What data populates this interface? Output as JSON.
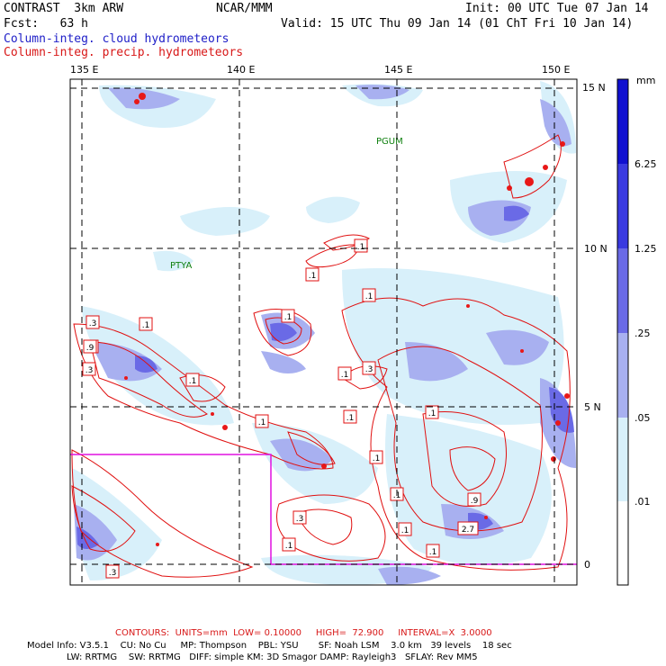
{
  "header": {
    "left1": "CONTRAST  3km ARW",
    "left2": "Fcst:   63 h",
    "center": "NCAR/MMM",
    "right1": "Init: 00 UTC Tue 07 Jan 14",
    "right2": "Valid: 15 UTC Thu 09 Jan 14 (01 ChT Fri 10 Jan 14)",
    "line3": "Column-integ. cloud hydrometeors",
    "line4": "Column-integ. precip. hydrometeors"
  },
  "colors": {
    "cloud_text": "#2020c8",
    "precip_text": "#d81818",
    "contour": "#e01010",
    "domain_box": "#e010e0",
    "station": "#108010"
  },
  "axes": {
    "lon_labels": [
      "135 E",
      "140 E",
      "145 E",
      "150 E"
    ],
    "lat_labels": [
      "15 N",
      "10 N",
      "5 N",
      "0"
    ]
  },
  "stations": [
    "PGUM",
    "PTYA"
  ],
  "colorbar": {
    "unit": "mm",
    "levels": [
      "6.25",
      "1.25",
      ".25",
      ".05",
      ".01"
    ],
    "colors": [
      "#1010d0",
      "#3a3ae0",
      "#6a6ae6",
      "#a8b0f0",
      "#d8f0fa",
      "#ffffff"
    ]
  },
  "contour_labels": [
    ".1",
    ".1",
    ".1",
    ".1",
    ".3",
    ".1",
    ".9",
    ".3",
    ".1",
    ".1",
    ".1",
    ".1",
    ".3",
    ".1",
    ".1",
    ".1",
    ".3",
    ".1",
    ".3",
    ".1",
    ".9",
    "2.7",
    ".1",
    ".9"
  ],
  "footer": {
    "contours_line": "CONTOURS:  UNITS=mm  LOW= 0.10000     HIGH=  72.900     INTERVAL=X  3.0000",
    "model_line1": "Model Info: V3.5.1    CU: No Cu     MP: Thompson    PBL: YSU       SF: Noah LSM    3.0 km   39 levels    18 sec",
    "model_line2": "LW: RRTMG    SW: RRTMG   DIFF: simple KM: 3D Smagor DAMP: Rayleigh3   SFLAY: Rev MM5"
  }
}
